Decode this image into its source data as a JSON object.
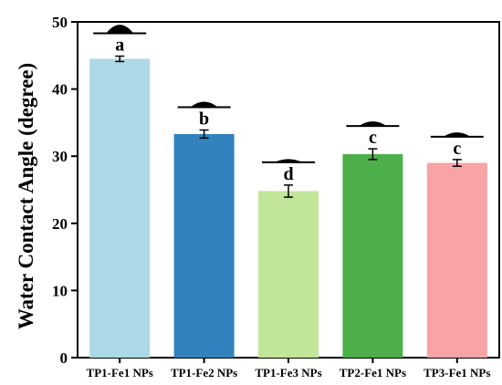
{
  "chart_data": {
    "type": "bar",
    "title": "",
    "xlabel": "",
    "ylabel": "Water Contact Angle (degree)",
    "ylim": [
      0,
      50
    ],
    "yticks": [
      0,
      10,
      20,
      30,
      40,
      50
    ],
    "categories": [
      "TP1-Fe1 NPs",
      "TP1-Fe2 NPs",
      "TP1-Fe3 NPs",
      "TP2-Fe1 NPs",
      "TP3-Fe1 NPs"
    ],
    "values": [
      44.5,
      33.3,
      24.8,
      30.3,
      29.0
    ],
    "errors": [
      0.4,
      0.6,
      0.9,
      0.8,
      0.5
    ],
    "significance_letters": [
      "a",
      "b",
      "d",
      "c",
      "c"
    ],
    "colors": [
      "#add8e6",
      "#3182bd",
      "#c2e699",
      "#4daf4a",
      "#f8a3a5"
    ],
    "grid": false,
    "legend": "none"
  }
}
